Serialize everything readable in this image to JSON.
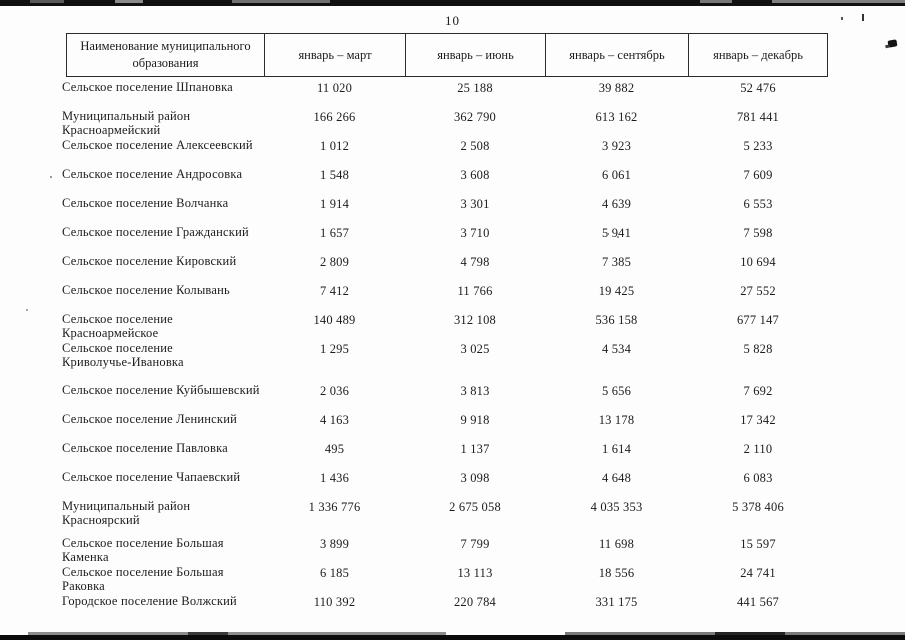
{
  "page_number": "10",
  "table": {
    "header": {
      "name": "Наименование муниципального образования",
      "periods": [
        "январь – март",
        "январь – июнь",
        "январь – сентябрь",
        "январь – декабрь"
      ]
    },
    "rows": [
      {
        "name": "Сельское поселение Шпановка",
        "values": [
          "11 020",
          "25 188",
          "39 882",
          "52 476"
        ]
      },
      {
        "name": "Муниципальный район Красноармейский",
        "values": [
          "166 266",
          "362 790",
          "613 162",
          "781 441"
        ]
      },
      {
        "name": "Сельское поселение Алексеевский",
        "values": [
          "1 012",
          "2 508",
          "3 923",
          "5 233"
        ]
      },
      {
        "name": "Сельское поселение Андросовка",
        "values": [
          "1 548",
          "3 608",
          "6 061",
          "7 609"
        ]
      },
      {
        "name": "Сельское поселение Волчанка",
        "values": [
          "1 914",
          "3 301",
          "4 639",
          "6 553"
        ]
      },
      {
        "name": "Сельское поселение Гражданский",
        "values": [
          "1 657",
          "3 710",
          "5 941",
          "7 598"
        ]
      },
      {
        "name": "Сельское поселение Кировский",
        "values": [
          "2 809",
          "4 798",
          "7 385",
          "10 694"
        ]
      },
      {
        "name": "Сельское поселение Колывань",
        "values": [
          "7 412",
          "11 766",
          "19 425",
          "27 552"
        ]
      },
      {
        "name": "Сельское поселение Красноармейское",
        "values": [
          "140 489",
          "312 108",
          "536 158",
          "677 147"
        ]
      },
      {
        "name": "Сельское поселение\nКриволучье-Ивановка",
        "values": [
          "1 295",
          "3 025",
          "4 534",
          "5 828"
        ]
      },
      {
        "name": "Сельское поселение Куйбышевский",
        "values": [
          "2 036",
          "3 813",
          "5 656",
          "7 692"
        ]
      },
      {
        "name": "Сельское поселение Ленинский",
        "values": [
          "4 163",
          "9 918",
          "13 178",
          "17 342"
        ]
      },
      {
        "name": "Сельское поселение Павловка",
        "values": [
          "495",
          "1 137",
          "1 614",
          "2 110"
        ]
      },
      {
        "name": "Сельское поселение Чапаевский",
        "values": [
          "1 436",
          "3 098",
          "4 648",
          "6 083"
        ]
      },
      {
        "name": "Муниципальный район Красноярский",
        "values": [
          "1 336 776",
          "2 675 058",
          "4 035 353",
          "5 378 406"
        ]
      },
      {
        "name": "Сельское поселение Большая Каменка",
        "values": [
          "3 899",
          "7 799",
          "11 698",
          "15 597"
        ]
      },
      {
        "name": "Сельское поселение Большая Раковка",
        "values": [
          "6 185",
          "13 113",
          "18 556",
          "24 741"
        ]
      },
      {
        "name": "Городское поселение Волжский",
        "values": [
          "110 392",
          "220 784",
          "331 175",
          "441 567"
        ]
      }
    ]
  },
  "colors": {
    "ink": "#1c1c1c",
    "border": "#2b2b2b"
  }
}
